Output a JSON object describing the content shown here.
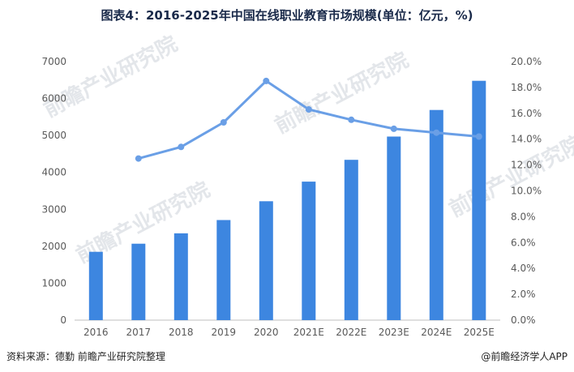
{
  "title": "图表4：2016-2025年中国在线职业教育市场规模(单位：亿元，%)",
  "footer": {
    "source": "资料来源：德勤 前瞻产业研究院整理",
    "brand": "@前瞻经济学人APP"
  },
  "watermark": "前瞻产业研究院",
  "colors": {
    "bar": "#3d86e0",
    "line": "#6a9fe6",
    "axis_text": "#595959",
    "axis_line": "#bfbfbf"
  },
  "chart_data": {
    "type": "bar",
    "categories": [
      "2016",
      "2017",
      "2018",
      "2019",
      "2020",
      "2021E",
      "2022E",
      "2023E",
      "2024E",
      "2025E"
    ],
    "series": [
      {
        "type": "bar",
        "axis": "left",
        "values": [
          1850,
          2070,
          2350,
          2710,
          3220,
          3750,
          4340,
          4970,
          5690,
          6480
        ]
      },
      {
        "type": "line",
        "axis": "right",
        "values": [
          null,
          12.5,
          13.4,
          15.3,
          18.5,
          16.3,
          15.5,
          14.8,
          14.5,
          14.2
        ]
      }
    ],
    "y_left": {
      "min": 0,
      "max": 7000,
      "ticks": [
        "0",
        "1000",
        "2000",
        "3000",
        "4000",
        "5000",
        "6000",
        "7000"
      ]
    },
    "y_right": {
      "min": 0,
      "max": 20,
      "ticks": [
        "0.0%",
        "2.0%",
        "4.0%",
        "6.0%",
        "8.0%",
        "10.0%",
        "12.0%",
        "14.0%",
        "16.0%",
        "18.0%",
        "20.0%"
      ]
    },
    "grid": false,
    "legend": "none"
  }
}
